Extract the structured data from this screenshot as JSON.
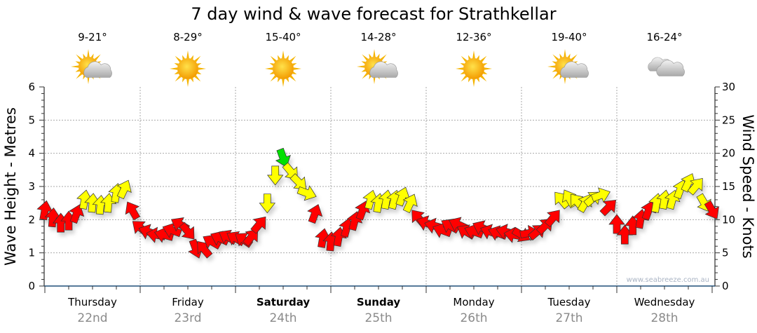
{
  "chart_data": {
    "type": "scatter",
    "title": "7 day wind & wave forecast for Strathkellar",
    "ylabel_left": "Wave Height - Metres",
    "ylabel_right": "Wind Speed - Knots",
    "ylim_left": [
      0,
      6
    ],
    "ylim_right": [
      0,
      30
    ],
    "left_ticks": [
      "0",
      "1",
      "2",
      "3",
      "4",
      "5",
      "6"
    ],
    "right_ticks": [
      "0",
      "5",
      "10",
      "15",
      "20",
      "25",
      "30"
    ],
    "grid": true,
    "watermark": "www.seabreeze.com.au",
    "days": [
      {
        "day": "Thursday",
        "date": "22nd",
        "temp": "9-21°",
        "icon": "partly-cloudy-icon",
        "bold": false
      },
      {
        "day": "Friday",
        "date": "23rd",
        "temp": "8-29°",
        "icon": "sunny-icon",
        "bold": false
      },
      {
        "day": "Saturday",
        "date": "24th",
        "temp": "15-40°",
        "icon": "sunny-icon",
        "bold": true
      },
      {
        "day": "Sunday",
        "date": "25th",
        "temp": "14-28°",
        "icon": "partly-cloudy-icon",
        "bold": true
      },
      {
        "day": "Monday",
        "date": "26th",
        "temp": "12-36°",
        "icon": "sunny-icon",
        "bold": false
      },
      {
        "day": "Tuesday",
        "date": "27th",
        "temp": "19-40°",
        "icon": "partly-cloudy-icon",
        "bold": false
      },
      {
        "day": "Wednesday",
        "date": "28th",
        "temp": "16-24°",
        "icon": "cloudy-icon",
        "bold": false
      }
    ],
    "wind": {
      "interval_hours": 2,
      "speed_knots": [
        11.4,
        10.3,
        9.5,
        9.8,
        10.9,
        13,
        12.5,
        12.2,
        12.5,
        14,
        14.6,
        11.4,
        8.8,
        8.2,
        7.7,
        7.7,
        8.4,
        9.3,
        8.2,
        5.6,
        5.6,
        6.7,
        7.2,
        7.4,
        7.2,
        7.0,
        7.4,
        9.3,
        12.5,
        16.7,
        19.3,
        17.2,
        15.6,
        14,
        10.9,
        7.2,
        6.7,
        7.4,
        8.8,
        9.8,
        11.4,
        13,
        12.5,
        13,
        13,
        13.5,
        12.5,
        10.3,
        9.5,
        9.1,
        8.4,
        9.1,
        9.3,
        8.2,
        8.2,
        8.8,
        8.2,
        8.0,
        8.2,
        7.7,
        7.7,
        8.0,
        8.2,
        9.1,
        10.3,
        13,
        13.2,
        12.7,
        12.5,
        13.2,
        13.7,
        11.9,
        9.3,
        7.7,
        9.1,
        10.1,
        11.4,
        12.5,
        13,
        13,
        14.6,
        15.6,
        15.1,
        12.5,
        11.4
      ],
      "direction_deg": [
        10,
        5,
        0,
        0,
        20,
        10,
        5,
        5,
        5,
        10,
        25,
        -30,
        -50,
        -70,
        -80,
        -75,
        -70,
        -60,
        140,
        160,
        -40,
        -60,
        -65,
        -60,
        -60,
        -55,
        40,
        40,
        180,
        180,
        160,
        140,
        135,
        110,
        20,
        10,
        5,
        10,
        15,
        15,
        20,
        15,
        10,
        10,
        15,
        20,
        25,
        -40,
        -70,
        -75,
        -70,
        -60,
        -65,
        -60,
        -70,
        -65,
        -70,
        -70,
        -75,
        -80,
        120,
        80,
        50,
        45,
        40,
        -40,
        -30,
        -40,
        30,
        50,
        70,
        45,
        0,
        0,
        0,
        10,
        20,
        10,
        10,
        15,
        20,
        25,
        40,
        150,
        150
      ]
    },
    "colors": {
      "low": "#ff0000",
      "mid": "#ffff00",
      "high": "#00e000",
      "axis": "#1f4e79",
      "grid": "#aaaaaa"
    },
    "color_thresholds_knots": [
      12,
      19
    ]
  }
}
